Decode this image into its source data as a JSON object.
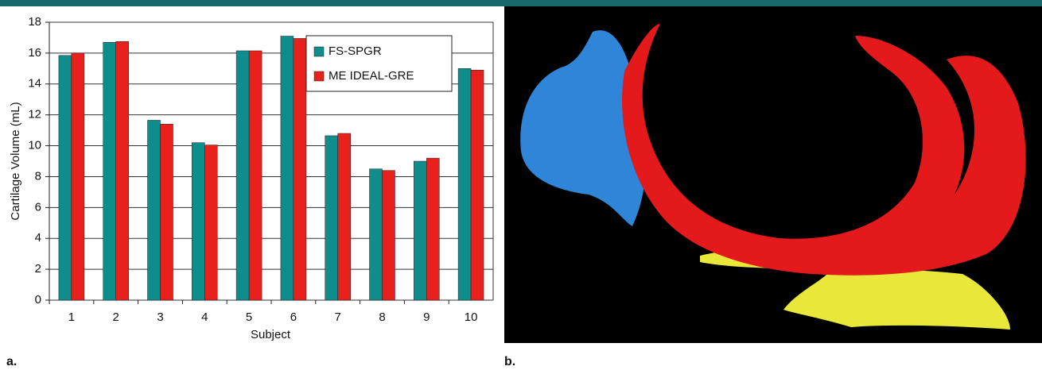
{
  "panel_labels": [
    "a.",
    "b."
  ],
  "chart_data": {
    "type": "bar",
    "xlabel": "Subject",
    "ylabel": "Cartilage Volume (mL)",
    "categories": [
      "1",
      "2",
      "3",
      "4",
      "5",
      "6",
      "7",
      "8",
      "9",
      "10"
    ],
    "series": [
      {
        "name": "FS-SPGR",
        "color": "#0f8c8c",
        "values": [
          15.85,
          16.7,
          11.65,
          10.2,
          16.15,
          17.1,
          10.65,
          8.5,
          9.0,
          15.0
        ]
      },
      {
        "name": "ME IDEAL-GRE",
        "color": "#e8211c",
        "values": [
          16.0,
          16.75,
          11.4,
          10.05,
          16.15,
          16.95,
          10.8,
          8.4,
          9.2,
          14.9
        ]
      }
    ],
    "ylim": [
      0,
      18
    ],
    "yticks": [
      0,
      2,
      4,
      6,
      8,
      10,
      12,
      14,
      16,
      18
    ],
    "grid": true,
    "legend": "upper-right"
  }
}
